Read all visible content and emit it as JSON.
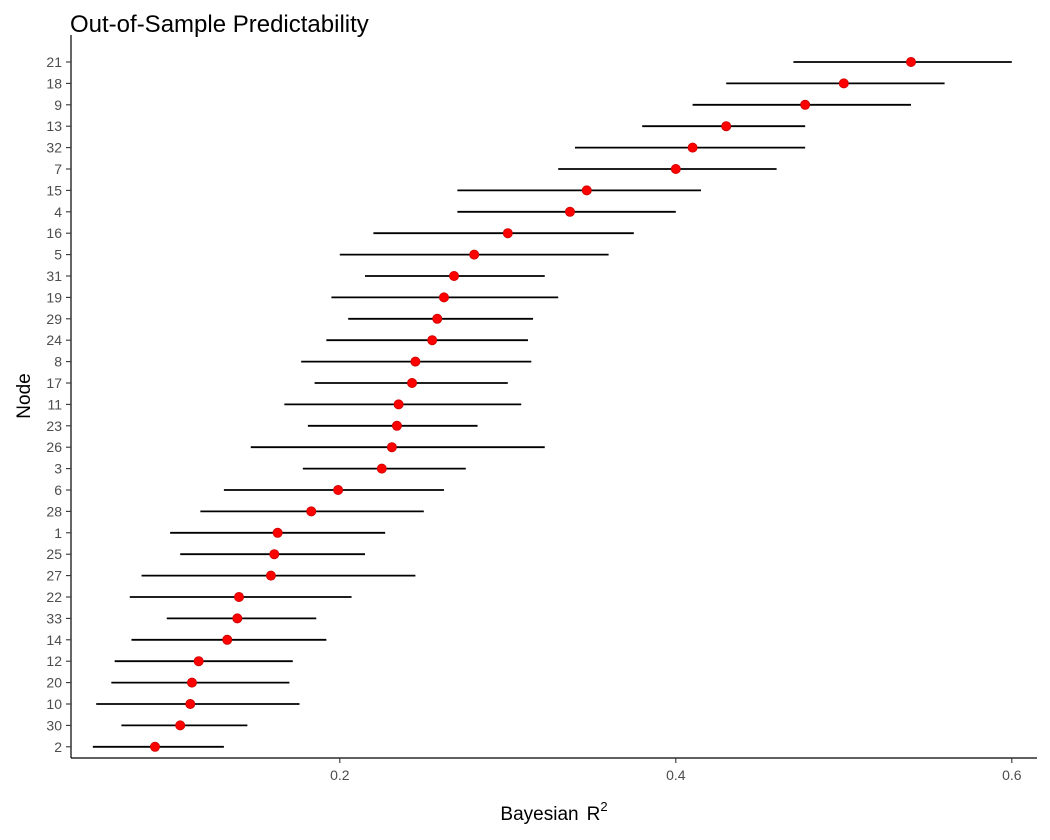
{
  "chart_data": {
    "type": "scatter",
    "title": "Out-of-Sample Predictability",
    "xlabel": "Bayesian",
    "xlabel_sup": "R",
    "xlabel_exp": "2",
    "ylabel": "Node",
    "xlim": [
      0.04,
      0.615
    ],
    "xticks": [
      0.2,
      0.4,
      0.6
    ],
    "xtick_labels": [
      "0.2",
      "0.4",
      "0.6"
    ],
    "point_color": "#ff0000",
    "bar_color": "#000000",
    "nodes": [
      {
        "node": "21",
        "estimate": 0.54,
        "lower": 0.47,
        "upper": 0.6
      },
      {
        "node": "18",
        "estimate": 0.5,
        "lower": 0.43,
        "upper": 0.56
      },
      {
        "node": "9",
        "estimate": 0.477,
        "lower": 0.41,
        "upper": 0.54
      },
      {
        "node": "13",
        "estimate": 0.43,
        "lower": 0.38,
        "upper": 0.477
      },
      {
        "node": "32",
        "estimate": 0.41,
        "lower": 0.34,
        "upper": 0.477
      },
      {
        "node": "7",
        "estimate": 0.4,
        "lower": 0.33,
        "upper": 0.46
      },
      {
        "node": "15",
        "estimate": 0.347,
        "lower": 0.27,
        "upper": 0.415
      },
      {
        "node": "4",
        "estimate": 0.337,
        "lower": 0.27,
        "upper": 0.4
      },
      {
        "node": "16",
        "estimate": 0.3,
        "lower": 0.22,
        "upper": 0.375
      },
      {
        "node": "5",
        "estimate": 0.28,
        "lower": 0.2,
        "upper": 0.36
      },
      {
        "node": "31",
        "estimate": 0.268,
        "lower": 0.215,
        "upper": 0.322
      },
      {
        "node": "19",
        "estimate": 0.262,
        "lower": 0.195,
        "upper": 0.33
      },
      {
        "node": "29",
        "estimate": 0.258,
        "lower": 0.205,
        "upper": 0.315
      },
      {
        "node": "24",
        "estimate": 0.255,
        "lower": 0.192,
        "upper": 0.312
      },
      {
        "node": "8",
        "estimate": 0.245,
        "lower": 0.177,
        "upper": 0.314
      },
      {
        "node": "17",
        "estimate": 0.243,
        "lower": 0.185,
        "upper": 0.3
      },
      {
        "node": "11",
        "estimate": 0.235,
        "lower": 0.167,
        "upper": 0.308
      },
      {
        "node": "23",
        "estimate": 0.234,
        "lower": 0.181,
        "upper": 0.282
      },
      {
        "node": "26",
        "estimate": 0.231,
        "lower": 0.147,
        "upper": 0.322
      },
      {
        "node": "3",
        "estimate": 0.225,
        "lower": 0.178,
        "upper": 0.275
      },
      {
        "node": "6",
        "estimate": 0.199,
        "lower": 0.131,
        "upper": 0.262
      },
      {
        "node": "28",
        "estimate": 0.183,
        "lower": 0.117,
        "upper": 0.25
      },
      {
        "node": "1",
        "estimate": 0.163,
        "lower": 0.099,
        "upper": 0.227
      },
      {
        "node": "25",
        "estimate": 0.161,
        "lower": 0.105,
        "upper": 0.215
      },
      {
        "node": "27",
        "estimate": 0.159,
        "lower": 0.082,
        "upper": 0.245
      },
      {
        "node": "22",
        "estimate": 0.14,
        "lower": 0.075,
        "upper": 0.207
      },
      {
        "node": "33",
        "estimate": 0.139,
        "lower": 0.097,
        "upper": 0.186
      },
      {
        "node": "14",
        "estimate": 0.133,
        "lower": 0.076,
        "upper": 0.192
      },
      {
        "node": "12",
        "estimate": 0.116,
        "lower": 0.066,
        "upper": 0.172
      },
      {
        "node": "20",
        "estimate": 0.112,
        "lower": 0.064,
        "upper": 0.17
      },
      {
        "node": "10",
        "estimate": 0.111,
        "lower": 0.055,
        "upper": 0.176
      },
      {
        "node": "30",
        "estimate": 0.105,
        "lower": 0.07,
        "upper": 0.145
      },
      {
        "node": "2",
        "estimate": 0.09,
        "lower": 0.053,
        "upper": 0.131
      }
    ]
  }
}
